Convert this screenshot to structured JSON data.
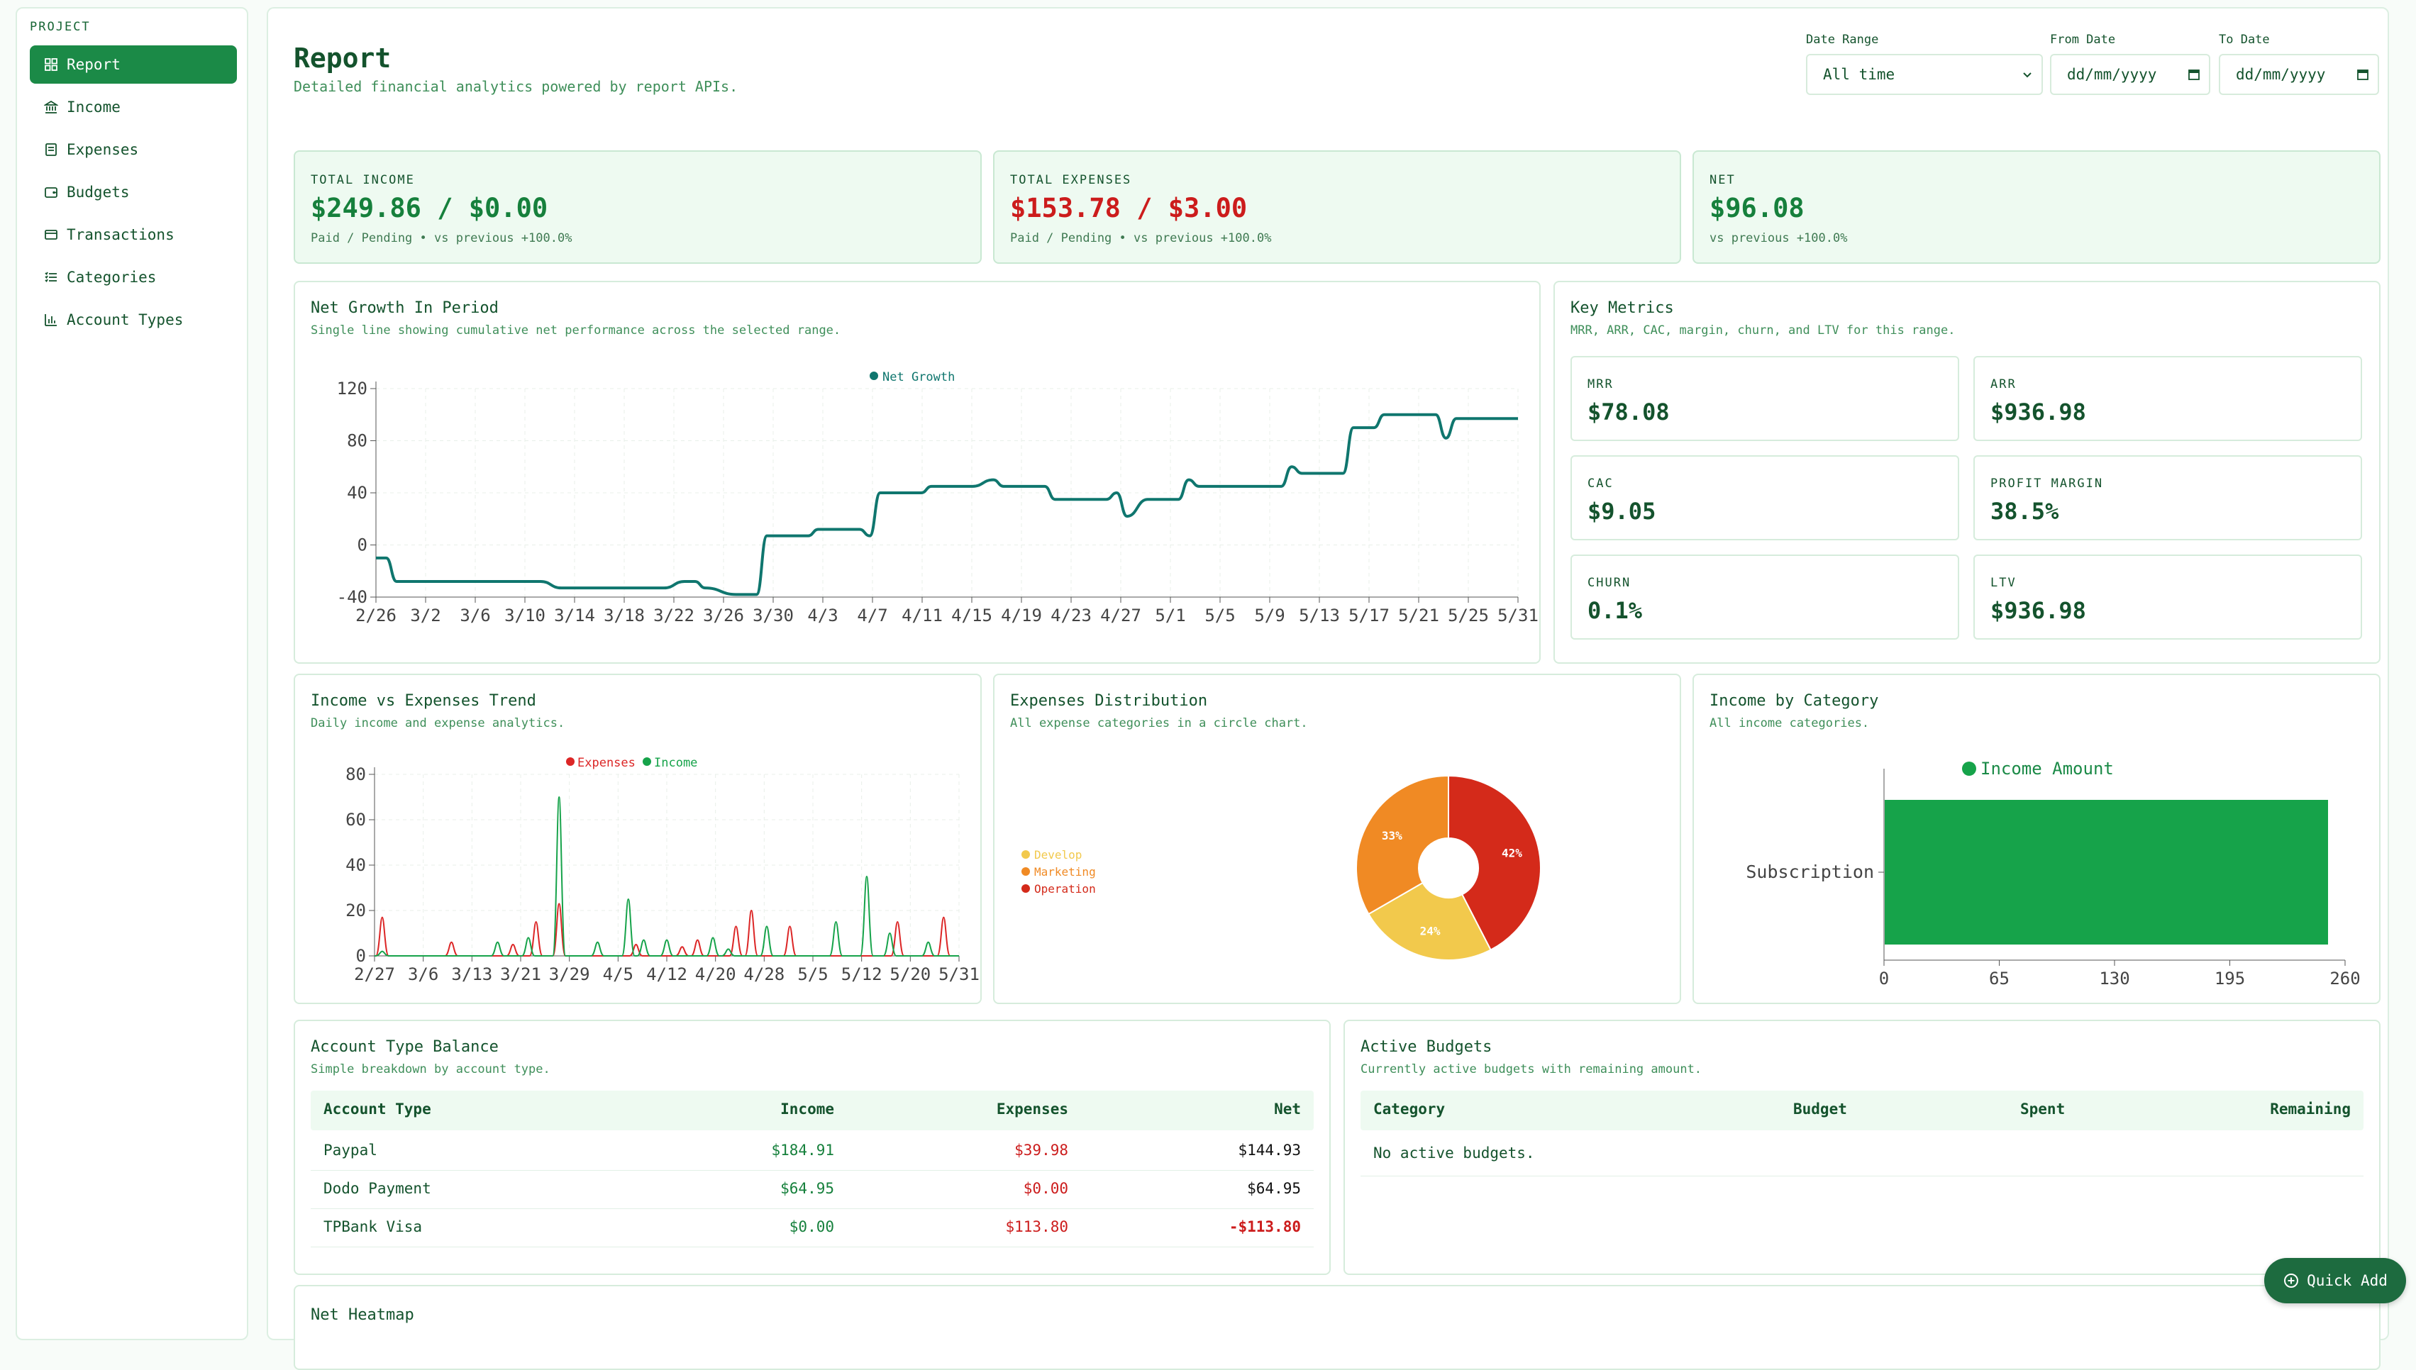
{
  "sidebar": {
    "section_label": "PROJECT",
    "items": [
      {
        "label": "Report",
        "icon": "dashboard-icon"
      },
      {
        "label": "Income",
        "icon": "bank-icon"
      },
      {
        "label": "Expenses",
        "icon": "receipt-icon"
      },
      {
        "label": "Budgets",
        "icon": "wallet-icon"
      },
      {
        "label": "Transactions",
        "icon": "card-icon"
      },
      {
        "label": "Categories",
        "icon": "list-icon"
      },
      {
        "label": "Account Types",
        "icon": "bar-chart-icon"
      }
    ]
  },
  "header": {
    "title": "Report",
    "subtitle": "Detailed financial analytics powered by report APIs."
  },
  "filters": {
    "date_range_label": "Date Range",
    "date_range_value": "All time",
    "from_label": "From Date",
    "from_placeholder": "dd/mm/yyyy",
    "to_label": "To Date",
    "to_placeholder": "dd/mm/yyyy"
  },
  "kpis": [
    {
      "label": "TOTAL INCOME",
      "value": "$249.86 / $0.00",
      "meta": "Paid / Pending • vs previous +100.0%"
    },
    {
      "label": "TOTAL EXPENSES",
      "value": "$153.78 / $3.00",
      "meta": "Paid / Pending • vs previous +100.0%"
    },
    {
      "label": "NET",
      "value": "$96.08",
      "meta": "vs previous +100.0%"
    }
  ],
  "colors": {
    "primary": "#1b8a47",
    "income": "#16a34a",
    "expense": "#dc2626",
    "net": "#0f766e"
  },
  "net_growth": {
    "title": "Net Growth In Period",
    "subtitle": "Single line showing cumulative net performance across the selected range."
  },
  "key_metrics": {
    "title": "Key Metrics",
    "subtitle": "MRR, ARR, CAC, margin, churn, and LTV for this range.",
    "items": [
      {
        "label": "MRR",
        "value": "$78.08"
      },
      {
        "label": "ARR",
        "value": "$936.98"
      },
      {
        "label": "CAC",
        "value": "$9.05"
      },
      {
        "label": "PROFIT MARGIN",
        "value": "38.5%"
      },
      {
        "label": "CHURN",
        "value": "0.1%"
      },
      {
        "label": "LTV",
        "value": "$936.98"
      }
    ]
  },
  "trend": {
    "title": "Income vs Expenses Trend",
    "subtitle": "Daily income and expense analytics."
  },
  "distribution": {
    "title": "Expenses Distribution",
    "subtitle": "All expense categories in a circle chart."
  },
  "income_cat": {
    "title": "Income by Category",
    "subtitle": "All income categories."
  },
  "account_balance": {
    "title": "Account Type Balance",
    "subtitle": "Simple breakdown by account type.",
    "columns": [
      "Account Type",
      "Income",
      "Expenses",
      "Net"
    ],
    "rows": [
      {
        "name": "Paypal",
        "income": "$184.91",
        "expenses": "$39.98",
        "net": "$144.93"
      },
      {
        "name": "Dodo Payment",
        "income": "$64.95",
        "expenses": "$0.00",
        "net": "$64.95"
      },
      {
        "name": "TPBank Visa",
        "income": "$0.00",
        "expenses": "$113.80",
        "net": "-$113.80"
      }
    ]
  },
  "budgets": {
    "title": "Active Budgets",
    "subtitle": "Currently active budgets with remaining amount.",
    "columns": [
      "Category",
      "Budget",
      "Spent",
      "Remaining"
    ],
    "empty": "No active budgets."
  },
  "heatmap": {
    "title": "Net Heatmap"
  },
  "quick_add": {
    "label": "Quick Add",
    "icon": "plus-circle-icon"
  },
  "chart_data": [
    {
      "type": "line",
      "legend": [
        "Net Growth"
      ],
      "x_ticks": [
        "2/26",
        "3/2",
        "3/6",
        "3/10",
        "3/14",
        "3/18",
        "3/22",
        "3/26",
        "3/30",
        "4/3",
        "4/7",
        "4/11",
        "4/15",
        "4/19",
        "4/23",
        "4/27",
        "5/1",
        "5/5",
        "5/9",
        "5/13",
        "5/17",
        "5/21",
        "5/25",
        "5/31"
      ],
      "y_ticks": [
        -40,
        0,
        40,
        80,
        120
      ],
      "ylim": [
        -40,
        120
      ],
      "series": [
        {
          "name": "Net Growth",
          "points": [
            [
              0,
              -10
            ],
            [
              1,
              -10
            ],
            [
              2,
              -28
            ],
            [
              8,
              -28
            ],
            [
              10,
              -28
            ],
            [
              16,
              -28
            ],
            [
              18,
              -33
            ],
            [
              22,
              -33
            ],
            [
              24,
              -33
            ],
            [
              28,
              -33
            ],
            [
              30,
              -28
            ],
            [
              31,
              -28
            ],
            [
              32,
              -33
            ],
            [
              35,
              -38
            ],
            [
              36,
              -38
            ],
            [
              37,
              -38
            ],
            [
              38,
              7
            ],
            [
              42,
              7
            ],
            [
              43,
              12
            ],
            [
              47,
              12
            ],
            [
              48,
              7
            ],
            [
              49,
              40
            ],
            [
              53,
              40
            ],
            [
              54,
              45
            ],
            [
              58,
              45
            ],
            [
              60,
              50
            ],
            [
              61,
              45
            ],
            [
              65,
              45
            ],
            [
              66,
              35
            ],
            [
              71,
              35
            ],
            [
              72,
              40
            ],
            [
              73,
              22
            ],
            [
              75,
              35
            ],
            [
              78,
              35
            ],
            [
              79,
              50
            ],
            [
              80,
              45
            ],
            [
              88,
              45
            ],
            [
              89,
              60
            ],
            [
              90,
              55
            ],
            [
              94,
              55
            ],
            [
              95,
              90
            ],
            [
              97,
              90
            ],
            [
              98,
              100
            ],
            [
              103,
              100
            ],
            [
              104,
              82
            ],
            [
              105,
              97
            ],
            [
              111,
              97
            ]
          ]
        }
      ]
    },
    {
      "type": "line",
      "legend": [
        "Expenses",
        "Income"
      ],
      "x_ticks": [
        "2/27",
        "3/6",
        "3/13",
        "3/21",
        "3/29",
        "4/5",
        "4/12",
        "4/20",
        "4/28",
        "5/5",
        "5/12",
        "5/20",
        "5/31"
      ],
      "y_ticks": [
        0,
        20,
        40,
        60,
        80
      ],
      "ylim": [
        0,
        80
      ],
      "series": [
        {
          "name": "Expenses",
          "spikes": [
            [
              1,
              17
            ],
            [
              10,
              6
            ],
            [
              18,
              5
            ],
            [
              21,
              15
            ],
            [
              24,
              23
            ],
            [
              34,
              5
            ],
            [
              40,
              4
            ],
            [
              42,
              7
            ],
            [
              47,
              13
            ],
            [
              49,
              20
            ],
            [
              54,
              13
            ],
            [
              68,
              15
            ],
            [
              74,
              17
            ]
          ]
        },
        {
          "name": "Income",
          "spikes": [
            [
              1,
              2
            ],
            [
              16,
              6
            ],
            [
              20,
              8
            ],
            [
              24,
              70
            ],
            [
              29,
              6
            ],
            [
              33,
              25
            ],
            [
              35,
              7
            ],
            [
              38,
              7
            ],
            [
              44,
              8
            ],
            [
              46,
              3
            ],
            [
              51,
              13
            ],
            [
              60,
              15
            ],
            [
              64,
              35
            ],
            [
              67,
              10
            ],
            [
              72,
              6
            ]
          ]
        }
      ]
    },
    {
      "type": "pie",
      "legend": [
        "Develop",
        "Marketing",
        "Operation"
      ],
      "slices": [
        {
          "name": "Develop",
          "value": 24,
          "label": "24%"
        },
        {
          "name": "Marketing",
          "value": 33,
          "label": "33%"
        },
        {
          "name": "Operation",
          "value": 42,
          "label": "42%"
        }
      ],
      "colors": [
        "#f2c94c",
        "#f08a24",
        "#d42a1a"
      ]
    },
    {
      "type": "bar",
      "orientation": "horizontal",
      "legend": [
        "Income Amount"
      ],
      "categories": [
        "Subscription"
      ],
      "values": [
        250
      ],
      "x_ticks": [
        0,
        65,
        130,
        195,
        260
      ],
      "xlim": [
        0,
        260
      ]
    }
  ]
}
